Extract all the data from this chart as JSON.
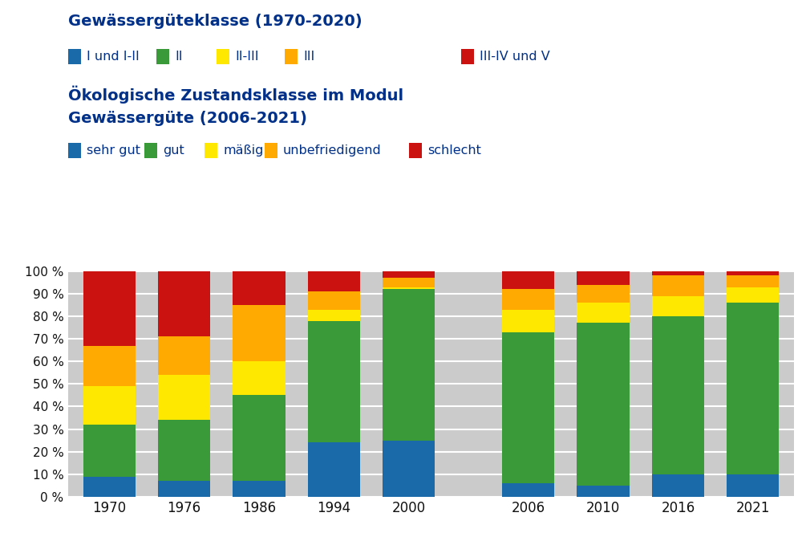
{
  "years": [
    "1970",
    "1976",
    "1986",
    "1994",
    "2000",
    "2006",
    "2010",
    "2016",
    "2021"
  ],
  "segments": {
    "blue": [
      9,
      7,
      7,
      24,
      25,
      6,
      5,
      10,
      10
    ],
    "green": [
      23,
      27,
      38,
      54,
      67,
      67,
      72,
      70,
      76
    ],
    "yellow": [
      17,
      20,
      15,
      5,
      1,
      10,
      9,
      9,
      7
    ],
    "orange": [
      18,
      17,
      25,
      8,
      4,
      9,
      8,
      9,
      5
    ],
    "red": [
      33,
      29,
      15,
      9,
      3,
      8,
      6,
      2,
      2
    ]
  },
  "colors": {
    "blue": "#1A6AAA",
    "green": "#3A9A3A",
    "yellow": "#FFE800",
    "orange": "#FFAA00",
    "red": "#CC1111"
  },
  "legend1_title": "Gewässergüteklasse (1970-2020)",
  "legend1_items": [
    {
      "label": "I und I-II",
      "color": "#1A6AAA"
    },
    {
      "label": "II",
      "color": "#3A9A3A"
    },
    {
      "label": "II-III",
      "color": "#FFE800"
    },
    {
      "label": "III",
      "color": "#FFAA00"
    },
    {
      "label": "III-IV und V",
      "color": "#CC1111"
    }
  ],
  "legend2_title_line1": "Ökologische Zustandsklasse im Modul",
  "legend2_title_line2": "Gewässergüte (2006-2021)",
  "legend2_items": [
    {
      "label": "sehr gut",
      "color": "#1A6AAA"
    },
    {
      "label": "gut",
      "color": "#3A9A3A"
    },
    {
      "label": "mäßig",
      "color": "#FFE800"
    },
    {
      "label": "unbefriedigend",
      "color": "#FFAA00"
    },
    {
      "label": "schlecht",
      "color": "#CC1111"
    }
  ],
  "ytick_vals": [
    0,
    10,
    20,
    30,
    40,
    50,
    60,
    70,
    80,
    90,
    100
  ],
  "ytick_labels": [
    "0 %",
    "10 %",
    "20 %",
    "30 %",
    "40 %",
    "50 %",
    "60 %",
    "70 %",
    "80 %",
    "90 %",
    "100 %"
  ],
  "title_color": "#003087",
  "bar_width": 0.7,
  "background_color": "#ffffff",
  "plot_bg_color": "#cbcbcb"
}
